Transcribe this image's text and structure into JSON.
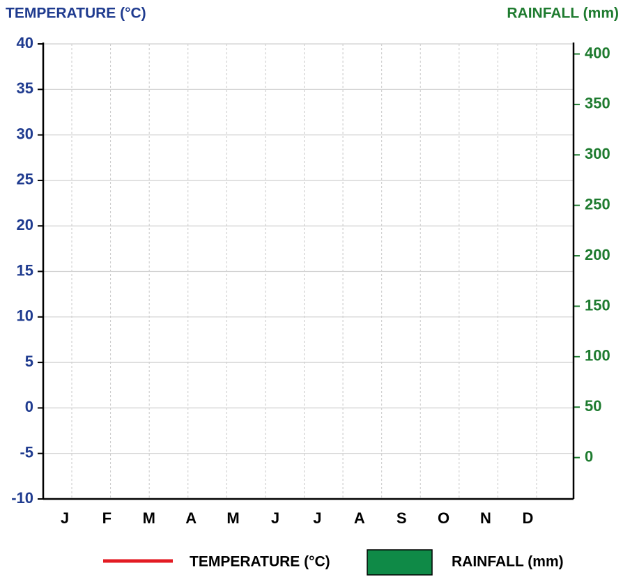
{
  "chart_data": {
    "type": "bar",
    "y_label": "TEMPERATURE (°C)",
    "y2_label": "RAINFALL (mm)",
    "categories": [
      "J",
      "F",
      "M",
      "A",
      "M",
      "J",
      "J",
      "A",
      "S",
      "O",
      "N",
      "D"
    ],
    "series": [
      {
        "name": "TEMPERATURE (°C)",
        "type": "line",
        "color": "#e31b23",
        "values": [
          null,
          null,
          null,
          null,
          null,
          null,
          null,
          null,
          null,
          null,
          null,
          null
        ]
      },
      {
        "name": "RAINFALL (mm)",
        "type": "bar",
        "axis": "y2",
        "color": "#0f8a47",
        "values": [
          null,
          null,
          null,
          null,
          null,
          null,
          null,
          null,
          null,
          null,
          null,
          null
        ]
      }
    ],
    "ylim": [
      -10,
      40
    ],
    "yticks": [
      -10,
      -5,
      0,
      5,
      10,
      15,
      20,
      25,
      30,
      35,
      40
    ],
    "y2lim": [
      -41,
      410
    ],
    "y2ticks": [
      0,
      50,
      100,
      150,
      200,
      250,
      300,
      350,
      400
    ],
    "grid": true
  }
}
